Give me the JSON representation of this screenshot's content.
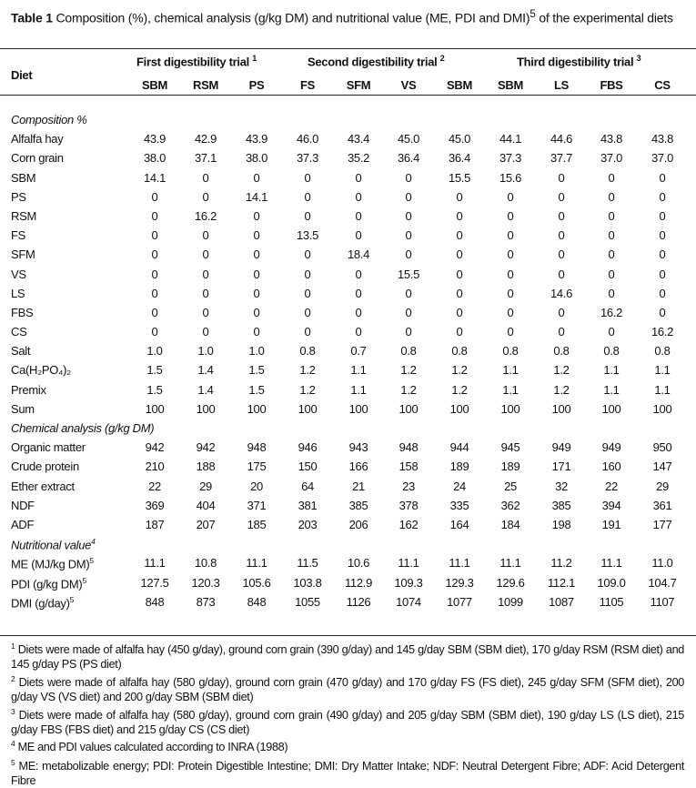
{
  "title": {
    "label": "Table 1",
    "text": " Composition (%), chemical analysis (g/kg DM) and nutritional value (ME, PDI and DMI)",
    "sup": "5",
    "text_after": " of the experimental diets"
  },
  "header": {
    "diet_label": "Diet",
    "groups": [
      {
        "label": "First digestibility trial ",
        "sup": "1"
      },
      {
        "label": "Second digestibility trial ",
        "sup": "2"
      },
      {
        "label": "Third digestibility trial ",
        "sup": "3"
      }
    ],
    "columns": [
      "SBM",
      "RSM",
      "PS",
      "FS",
      "SFM",
      "VS",
      "SBM",
      "SBM",
      "LS",
      "FBS",
      "CS"
    ]
  },
  "rows": [
    {
      "section": true,
      "label": "Composition %"
    },
    {
      "label": "Alfalfa hay",
      "values": [
        "43.9",
        "42.9",
        "43.9",
        "46.0",
        "43.4",
        "45.0",
        "45.0",
        "44.1",
        "44.6",
        "43.8",
        "43.8"
      ]
    },
    {
      "label": "Corn grain",
      "values": [
        "38.0",
        "37.1",
        "38.0",
        "37.3",
        "35.2",
        "36.4",
        "36.4",
        "37.3",
        "37.7",
        "37.0",
        "37.0"
      ]
    },
    {
      "label": "SBM",
      "values": [
        "14.1",
        "0",
        "0",
        "0",
        "0",
        "0",
        "15.5",
        "15.6",
        "0",
        "0",
        "0"
      ]
    },
    {
      "label": "PS",
      "values": [
        "0",
        "0",
        "14.1",
        "0",
        "0",
        "0",
        "0",
        "0",
        "0",
        "0",
        "0"
      ]
    },
    {
      "label": "RSM",
      "values": [
        "0",
        "16.2",
        "0",
        "0",
        "0",
        "0",
        "0",
        "0",
        "0",
        "0",
        "0"
      ]
    },
    {
      "label": "FS",
      "values": [
        "0",
        "0",
        "0",
        "13.5",
        "0",
        "0",
        "0",
        "0",
        "0",
        "0",
        "0"
      ]
    },
    {
      "label": "SFM",
      "values": [
        "0",
        "0",
        "0",
        "0",
        "18.4",
        "0",
        "0",
        "0",
        "0",
        "0",
        "0"
      ]
    },
    {
      "label": "VS",
      "values": [
        "0",
        "0",
        "0",
        "0",
        "0",
        "15.5",
        "0",
        "0",
        "0",
        "0",
        "0"
      ]
    },
    {
      "label": "LS",
      "values": [
        "0",
        "0",
        "0",
        "0",
        "0",
        "0",
        "0",
        "0",
        "14.6",
        "0",
        "0"
      ]
    },
    {
      "label": "FBS",
      "values": [
        "0",
        "0",
        "0",
        "0",
        "0",
        "0",
        "0",
        "0",
        "0",
        "16.2",
        "0"
      ]
    },
    {
      "label": "CS",
      "values": [
        "0",
        "0",
        "0",
        "0",
        "0",
        "0",
        "0",
        "0",
        "0",
        "0",
        "16.2"
      ]
    },
    {
      "label": "Salt",
      "values": [
        "1.0",
        "1.0",
        "1.0",
        "0.8",
        "0.7",
        "0.8",
        "0.8",
        "0.8",
        "0.8",
        "0.8",
        "0.8"
      ]
    },
    {
      "label": "Ca(H₂PO₄)₂",
      "values": [
        "1.5",
        "1.4",
        "1.5",
        "1.2",
        "1.1",
        "1.2",
        "1.2",
        "1.1",
        "1.2",
        "1.1",
        "1.1"
      ]
    },
    {
      "label": "Premix",
      "values": [
        "1.5",
        "1.4",
        "1.5",
        "1.2",
        "1.1",
        "1.2",
        "1.2",
        "1.1",
        "1.2",
        "1.1",
        "1.1"
      ]
    },
    {
      "label": "Sum",
      "values": [
        "100",
        "100",
        "100",
        "100",
        "100",
        "100",
        "100",
        "100",
        "100",
        "100",
        "100"
      ]
    },
    {
      "section": true,
      "label": "Chemical analysis (g/kg DM)"
    },
    {
      "label": "Organic matter",
      "values": [
        "942",
        "942",
        "948",
        "946",
        "943",
        "948",
        "944",
        "945",
        "949",
        "949",
        "950"
      ]
    },
    {
      "label": "Crude protein",
      "values": [
        "210",
        "188",
        "175",
        "150",
        "166",
        "158",
        "189",
        "189",
        "171",
        "160",
        "147"
      ]
    },
    {
      "label": "Ether extract",
      "values": [
        "22",
        "29",
        "20",
        "64",
        "21",
        "23",
        "24",
        "25",
        "32",
        "22",
        "29"
      ]
    },
    {
      "label": "NDF",
      "values": [
        "369",
        "404",
        "371",
        "381",
        "385",
        "378",
        "335",
        "362",
        "385",
        "394",
        "361"
      ]
    },
    {
      "label": "ADF",
      "values": [
        "187",
        "207",
        "185",
        "203",
        "206",
        "162",
        "164",
        "184",
        "198",
        "191",
        "177"
      ]
    },
    {
      "section": true,
      "label": "Nutritional value",
      "sup": "4"
    },
    {
      "label": "ME (MJ/kg DM)",
      "sup": "5",
      "values": [
        "11.1",
        "10.8",
        "11.1",
        "11.5",
        "10.6",
        "11.1",
        "11.1",
        "11.1",
        "11.2",
        "11.1",
        "11.0"
      ]
    },
    {
      "label": "PDI (g/kg DM)",
      "sup": "5",
      "values": [
        "127.5",
        "120.3",
        "105.6",
        "103.8",
        "112.9",
        "109.3",
        "129.3",
        "129.6",
        "112.1",
        "109.0",
        "104.7"
      ]
    },
    {
      "label": "DMI (g/day)",
      "sup": "5",
      "values": [
        "848",
        "873",
        "848",
        "1055",
        "1126",
        "1074",
        "1077",
        "1099",
        "1087",
        "1105",
        "1107"
      ]
    }
  ],
  "footnotes": [
    {
      "sup": "1",
      "text": " Diets were made of alfalfa hay (450 g/day), ground corn grain (390 g/day) and 145 g/day SBM (SBM diet), 170 g/day RSM (RSM diet) and 145 g/day PS (PS diet)"
    },
    {
      "sup": "2",
      "text": " Diets were made of alfalfa hay (580 g/day), ground corn grain (470 g/day) and 170 g/day FS (FS diet), 245 g/day SFM (SFM diet), 200 g/day VS (VS diet) and 200 g/day SBM (SBM diet)"
    },
    {
      "sup": "3",
      "text": " Diets were made of alfalfa hay (580 g/day), ground corn grain (490 g/day) and 205 g/day SBM (SBM diet), 190 g/day LS (LS diet), 215 g/day FBS (FBS diet) and 215 g/day CS (CS diet)"
    },
    {
      "sup": "4",
      "text": " ME and PDI values calculated according to INRA (1988)"
    },
    {
      "sup": "5",
      "text": " ME: metabolizable energy; PDI: Protein Digestible Intestine; DMI: Dry Matter Intake; NDF: Neutral Detergent Fibre; ADF: Acid Detergent Fibre"
    }
  ]
}
